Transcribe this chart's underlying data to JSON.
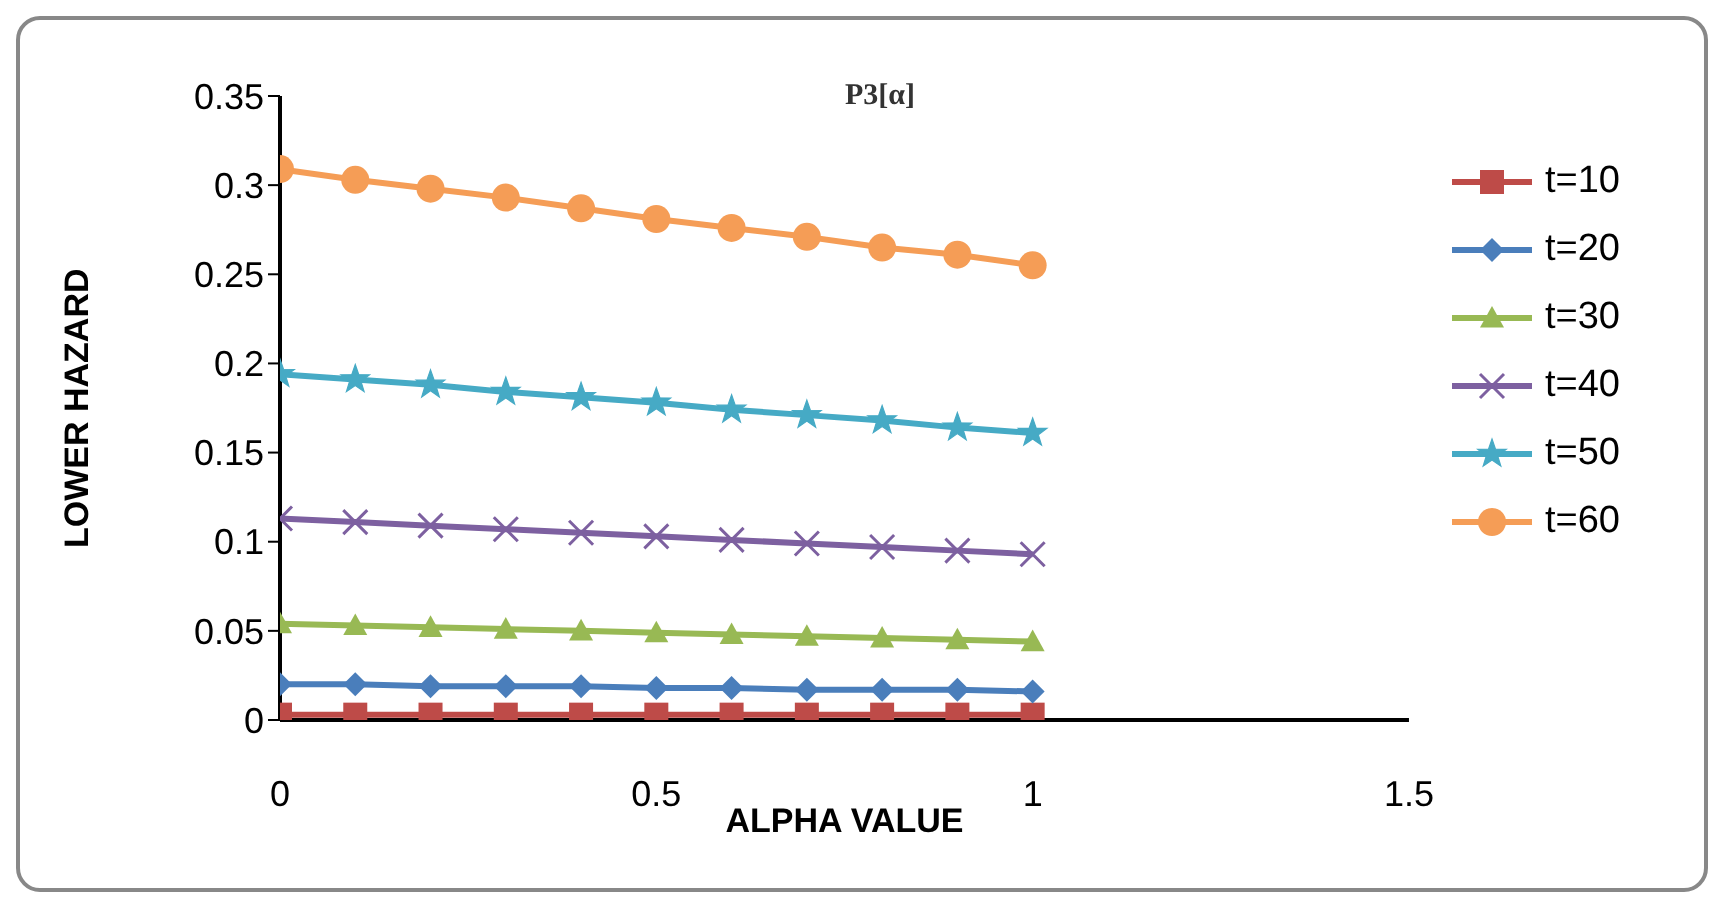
{
  "chart_data": {
    "type": "line",
    "title": "P3[α]",
    "xlabel": "ALPHA VALUE",
    "ylabel": "LOWER HAZARD",
    "x": [
      0,
      0.1,
      0.2,
      0.3,
      0.4,
      0.5,
      0.6,
      0.7,
      0.8,
      0.9,
      1
    ],
    "xlim": [
      0,
      1.5
    ],
    "xticks": [
      0,
      0.5,
      1,
      1.5
    ],
    "ylim": [
      0,
      0.35
    ],
    "yticks": [
      0,
      0.05,
      0.1,
      0.15,
      0.2,
      0.25,
      0.3,
      0.35
    ],
    "grid": false,
    "legend": "right",
    "line_style": "solid",
    "series": [
      {
        "name": "t=10",
        "color": "#be4b48",
        "marker": "square",
        "values": [
          0.003,
          0.003,
          0.003,
          0.003,
          0.003,
          0.003,
          0.003,
          0.003,
          0.003,
          0.003,
          0.003
        ]
      },
      {
        "name": "t=20",
        "color": "#4a7ebb",
        "marker": "diamond",
        "values": [
          0.02,
          0.02,
          0.019,
          0.019,
          0.019,
          0.018,
          0.018,
          0.017,
          0.017,
          0.017,
          0.016
        ]
      },
      {
        "name": "t=30",
        "color": "#98b954",
        "marker": "triangle",
        "values": [
          0.054,
          0.053,
          0.052,
          0.051,
          0.05,
          0.049,
          0.048,
          0.047,
          0.046,
          0.045,
          0.044
        ]
      },
      {
        "name": "t=40",
        "color": "#7d60a0",
        "marker": "cross",
        "values": [
          0.113,
          0.111,
          0.109,
          0.107,
          0.105,
          0.103,
          0.101,
          0.099,
          0.097,
          0.095,
          0.093
        ]
      },
      {
        "name": "t=50",
        "color": "#46aac5",
        "marker": "star",
        "values": [
          0.194,
          0.191,
          0.188,
          0.184,
          0.181,
          0.178,
          0.174,
          0.171,
          0.168,
          0.164,
          0.161
        ]
      },
      {
        "name": "t=60",
        "color": "#f59d56",
        "marker": "circle",
        "values": [
          0.309,
          0.303,
          0.298,
          0.293,
          0.287,
          0.281,
          0.276,
          0.271,
          0.265,
          0.261,
          0.255
        ]
      }
    ]
  }
}
